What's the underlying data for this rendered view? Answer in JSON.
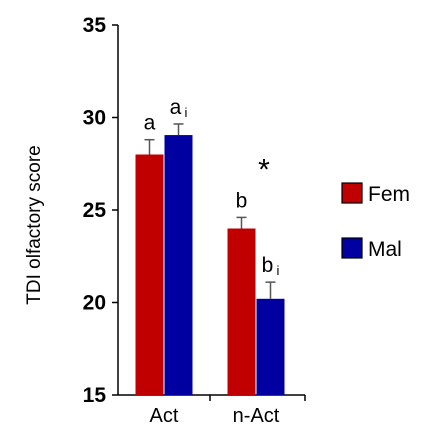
{
  "chart_data": {
    "type": "bar",
    "categories": [
      "Act",
      "n-Act"
    ],
    "series": [
      {
        "name": "Fem",
        "values": [
          28.0,
          24.0
        ],
        "errors": [
          0.8,
          0.6
        ],
        "color": "#c00000"
      },
      {
        "name": "Mal",
        "values": [
          29.05,
          20.2
        ],
        "errors": [
          0.6,
          0.9
        ],
        "color": "#0000a0"
      }
    ],
    "ylabel": "TDI olfactory score",
    "ylim": [
      15,
      35
    ],
    "yticks": [
      15,
      20,
      25,
      30,
      35
    ],
    "grid": false,
    "legend": "right",
    "annotations": [
      {
        "category": 0,
        "series": 0,
        "text": "a",
        "sub": ""
      },
      {
        "category": 0,
        "series": 1,
        "text": "a",
        "sub": "i"
      },
      {
        "category": 1,
        "series": 0,
        "text": "b",
        "sub": ""
      },
      {
        "category": 1,
        "series": 1,
        "text": "b",
        "sub": "i"
      }
    ],
    "significance": [
      {
        "category": 1,
        "text": "*"
      }
    ]
  }
}
